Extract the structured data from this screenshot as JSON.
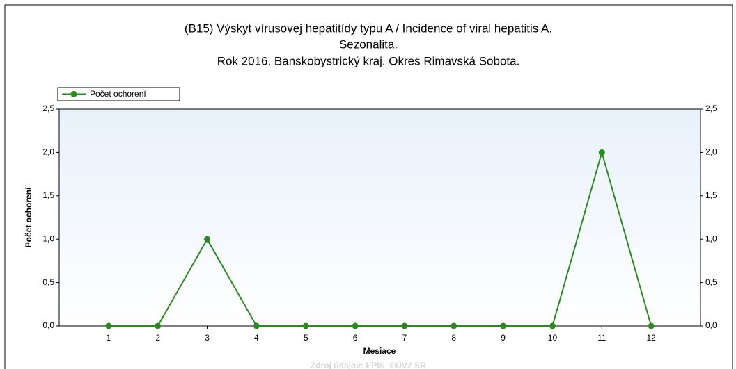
{
  "chart_data": {
    "type": "line",
    "title": [
      "(B15) Výskyt vírusovej hepatitídy typu A / Incidence of viral hepatitis A.",
      "Sezonalita.",
      "Rok 2016. Banskobystrický kraj. Okres Rimavská Sobota."
    ],
    "x_label": "Mesiace",
    "y_label": "Počet ochorení",
    "source": "Zdroj údajov: EPIS, ©ÚVZ SR",
    "categories": [
      "1",
      "2",
      "3",
      "4",
      "5",
      "6",
      "7",
      "8",
      "9",
      "10",
      "11",
      "12"
    ],
    "series": [
      {
        "name": "Počet ochorení",
        "color": "#2a8a1e",
        "values": [
          0,
          0,
          1,
          0,
          0,
          0,
          0,
          0,
          0,
          0,
          2,
          0
        ]
      }
    ],
    "ylim": [
      0,
      2.5
    ],
    "yticks": [
      {
        "value": 0,
        "label": "0,0"
      },
      {
        "value": 0.5,
        "label": "0,5"
      },
      {
        "value": 1,
        "label": "1,0"
      },
      {
        "value": 1.5,
        "label": "1,5"
      },
      {
        "value": 2,
        "label": "2,0"
      },
      {
        "value": 2.5,
        "label": "2,5"
      }
    ],
    "legend": "top-left"
  }
}
